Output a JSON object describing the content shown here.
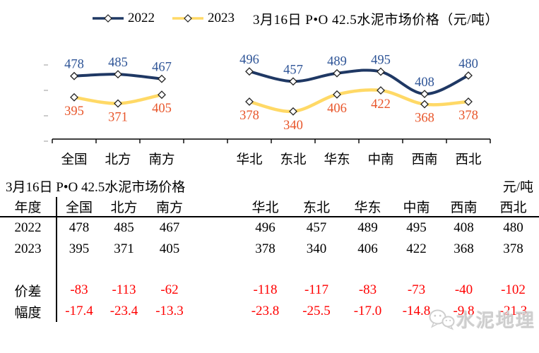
{
  "header": {
    "title": "3月16日 P•O 42.5水泥市场价格（元/吨）"
  },
  "chart_data": {
    "type": "line",
    "title": "3月16日 P•O 42.5水泥市场价格（元/吨）",
    "categories": [
      "全国",
      "北方",
      "南方",
      "华北",
      "东北",
      "华东",
      "中南",
      "西南",
      "西北"
    ],
    "group_gap_after_index": 2,
    "series": [
      {
        "name": "2022",
        "color": "#1F3864",
        "label_color": "#2F5597",
        "values": [
          478,
          485,
          467,
          496,
          457,
          489,
          495,
          408,
          480
        ]
      },
      {
        "name": "2023",
        "color": "#FFD966",
        "label_color": "#E8562B",
        "values": [
          395,
          371,
          405,
          378,
          340,
          406,
          422,
          368,
          378
        ]
      }
    ],
    "legend_position": "top",
    "y_axis_labels_hidden": true,
    "marker": "white-diamond",
    "ylim_approx": [
      232,
      560
    ]
  },
  "table": {
    "title": "3月16日 P•O 42.5水泥市场价格",
    "unit": "元/吨",
    "header": [
      "年度",
      "全国",
      "北方",
      "南方",
      "",
      "华北",
      "东北",
      "华东",
      "中南",
      "西南",
      "西北"
    ],
    "rows": [
      {
        "label": "2022",
        "red": false,
        "cells": [
          "478",
          "485",
          "467",
          "",
          "496",
          "457",
          "489",
          "495",
          "408",
          "480"
        ]
      },
      {
        "label": "2023",
        "red": false,
        "cells": [
          "395",
          "371",
          "405",
          "",
          "378",
          "340",
          "406",
          "422",
          "368",
          "378"
        ]
      },
      {
        "label": "",
        "red": false,
        "cells": [
          "",
          "",
          "",
          "",
          "",
          "",
          "",
          "",
          "",
          ""
        ]
      },
      {
        "label": "价差",
        "red": true,
        "cells": [
          "-83",
          "-113",
          "-62",
          "",
          "-118",
          "-117",
          "-83",
          "-73",
          "-40",
          "-102"
        ]
      },
      {
        "label": "幅度",
        "red": true,
        "cells": [
          "-17.4",
          "-23.4",
          "-13.3",
          "",
          "-23.8",
          "-25.5",
          "-17.0",
          "-14.8",
          "-9.8",
          "-21.3"
        ]
      }
    ]
  },
  "watermark": {
    "label": "水泥地理"
  },
  "colors": {
    "series_2022": "#1F3864",
    "series_2023": "#FFD966",
    "label_2022": "#2F5597",
    "label_2023": "#E8562B",
    "negative_red": "#FF0000",
    "axis": "#000000",
    "faint_tick": "#cccccc",
    "watermark_gray": "#C6C6C6"
  }
}
